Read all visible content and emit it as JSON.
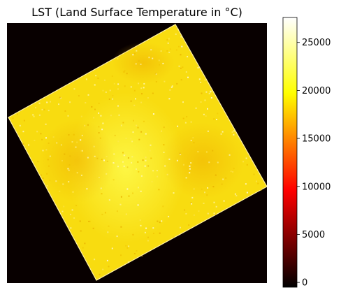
{
  "chart_data": {
    "type": "heatmap",
    "title": "LST (Land Surface Temperature in °C)",
    "colormap": "hot",
    "background_value": 0,
    "typical_value_range": [
      17000,
      24500
    ],
    "footprint": "rotated square scene footprint (~20° tilt) on black no-data background",
    "colorbar": {
      "vmin": -500,
      "vmax": 27600,
      "ticks": [
        0,
        5000,
        10000,
        15000,
        20000,
        25000
      ],
      "tick_labels": [
        "0",
        "5000",
        "10000",
        "15000",
        "20000",
        "25000"
      ]
    },
    "grid": false,
    "axes_visible": false
  }
}
